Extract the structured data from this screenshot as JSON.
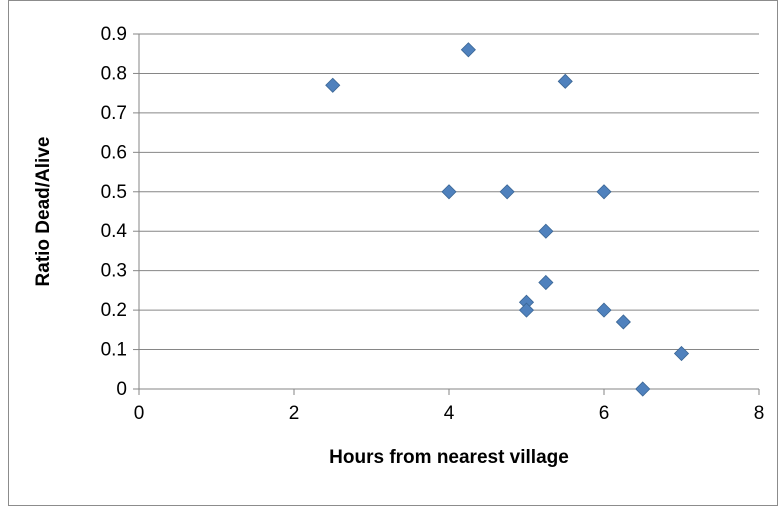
{
  "chart_data": {
    "type": "scatter",
    "title": "",
    "xlabel": "Hours from nearest village",
    "ylabel": "Ratio Dead/Alive",
    "xlim": [
      0,
      8
    ],
    "ylim": [
      0,
      0.9
    ],
    "x_ticks": [
      0,
      2,
      4,
      6,
      8
    ],
    "y_ticks": [
      0,
      0.1,
      0.2,
      0.3,
      0.4,
      0.5,
      0.6,
      0.7,
      0.8,
      0.9
    ],
    "x_tick_labels": [
      "0",
      "2",
      "4",
      "6",
      "8"
    ],
    "y_tick_labels": [
      "0",
      "0.1",
      "0.2",
      "0.3",
      "0.4",
      "0.5",
      "0.6",
      "0.7",
      "0.8",
      "0.9"
    ],
    "grid": "horizontal",
    "legend": "none",
    "marker": "diamond",
    "series": [
      {
        "color": "#4f81bd",
        "points": [
          {
            "x": 2.5,
            "y": 0.77
          },
          {
            "x": 4.25,
            "y": 0.86
          },
          {
            "x": 5.5,
            "y": 0.78
          },
          {
            "x": 4.0,
            "y": 0.5
          },
          {
            "x": 4.75,
            "y": 0.5
          },
          {
            "x": 6.0,
            "y": 0.5
          },
          {
            "x": 5.25,
            "y": 0.4
          },
          {
            "x": 5.25,
            "y": 0.27
          },
          {
            "x": 5.0,
            "y": 0.22
          },
          {
            "x": 5.0,
            "y": 0.2
          },
          {
            "x": 6.0,
            "y": 0.2
          },
          {
            "x": 6.25,
            "y": 0.17
          },
          {
            "x": 7.0,
            "y": 0.09
          },
          {
            "x": 6.5,
            "y": 0.0
          }
        ]
      }
    ]
  },
  "colors": {
    "marker_fill": "#4f81bd",
    "marker_stroke": "#3a6593",
    "gridline": "#868686",
    "axis": "#868686",
    "frame_border": "#8c8c8c"
  }
}
